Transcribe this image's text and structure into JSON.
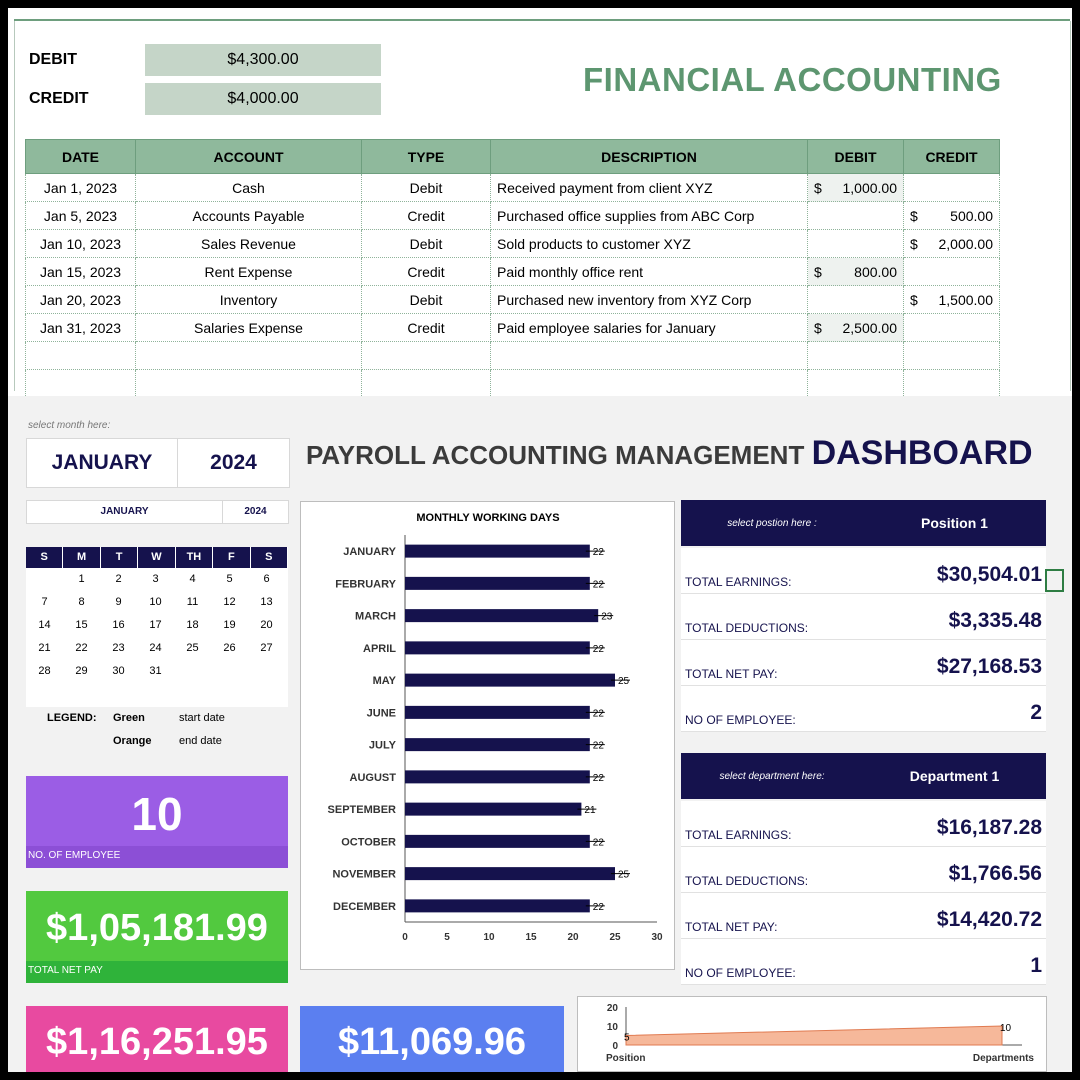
{
  "financial": {
    "debit_label": "DEBIT",
    "debit_value": "$4,300.00",
    "credit_label": "CREDIT",
    "credit_value": "$4,000.00",
    "title": "FINANCIAL ACCOUNTING",
    "columns": [
      "DATE",
      "ACCOUNT",
      "TYPE",
      "DESCRIPTION",
      "DEBIT",
      "CREDIT"
    ],
    "currency_symbol": "$",
    "rows": [
      {
        "date": "Jan 1, 2023",
        "account": "Cash",
        "type": "Debit",
        "description": "Received payment from client XYZ",
        "debit": "1,000.00",
        "credit": ""
      },
      {
        "date": "Jan 5, 2023",
        "account": "Accounts Payable",
        "type": "Credit",
        "description": "Purchased office supplies from ABC Corp",
        "debit": "",
        "credit": "500.00"
      },
      {
        "date": "Jan 10, 2023",
        "account": "Sales Revenue",
        "type": "Debit",
        "description": "Sold products to customer XYZ",
        "debit": "",
        "credit": "2,000.00"
      },
      {
        "date": "Jan 15, 2023",
        "account": "Rent Expense",
        "type": "Credit",
        "description": "Paid monthly office rent",
        "debit": "800.00",
        "credit": ""
      },
      {
        "date": "Jan 20, 2023",
        "account": "Inventory",
        "type": "Debit",
        "description": "Purchased new inventory from XYZ Corp",
        "debit": "",
        "credit": "1,500.00"
      },
      {
        "date": "Jan 31, 2023",
        "account": "Salaries Expense",
        "type": "Credit",
        "description": "Paid employee salaries for January",
        "debit": "2,500.00",
        "credit": ""
      }
    ]
  },
  "payroll": {
    "hint_month": "select month here:",
    "month": "JANUARY",
    "year": "2024",
    "title_main": "PAYROLL ACCOUNTING MANAGEMENT",
    "title_emph": "DASHBOARD",
    "mini_month": "JANUARY",
    "mini_year": "2024",
    "calendar": {
      "days": [
        "S",
        "M",
        "T",
        "W",
        "TH",
        "F",
        "S"
      ],
      "weeks": [
        [
          "",
          "1",
          "2",
          "3",
          "4",
          "5",
          "6"
        ],
        [
          "7",
          "8",
          "9",
          "10",
          "11",
          "12",
          "13"
        ],
        [
          "14",
          "15",
          "16",
          "17",
          "18",
          "19",
          "20"
        ],
        [
          "21",
          "22",
          "23",
          "24",
          "25",
          "26",
          "27"
        ],
        [
          "28",
          "29",
          "30",
          "31",
          "",
          "",
          ""
        ]
      ]
    },
    "legend": {
      "label": "LEGEND:",
      "green": "Green",
      "green_desc": "start date",
      "orange": "Orange",
      "orange_desc": "end date"
    },
    "kpis": {
      "employees_value": "10",
      "employees_label": "NO. OF EMPLOYEE",
      "net_pay_value": "$1,05,181.99",
      "net_pay_label": "TOTAL NET PAY",
      "earnings_value": "$1,16,251.95",
      "deductions_value": "$11,069.96"
    },
    "colors": {
      "navy": "#15124d",
      "purple": "#9b5de5",
      "green": "#4fc93b",
      "pink": "#e84aa0",
      "blue": "#5b7ff0"
    },
    "position_panel": {
      "hint": "select postion here :",
      "selected": "Position 1",
      "rows": [
        {
          "label": "TOTAL EARNINGS:",
          "value": "$30,504.01"
        },
        {
          "label": "TOTAL DEDUCTIONS:",
          "value": "$3,335.48"
        },
        {
          "label": "TOTAL NET PAY:",
          "value": "$27,168.53"
        },
        {
          "label": "NO OF EMPLOYEE:",
          "value": "2"
        }
      ]
    },
    "department_panel": {
      "hint": "select department here:",
      "selected": "Department 1",
      "rows": [
        {
          "label": "TOTAL EARNINGS:",
          "value": "$16,187.28"
        },
        {
          "label": "TOTAL DEDUCTIONS:",
          "value": "$1,766.56"
        },
        {
          "label": "TOTAL NET PAY:",
          "value": "$14,420.72"
        },
        {
          "label": "NO OF EMPLOYEE:",
          "value": "1"
        }
      ]
    }
  },
  "chart_data": [
    {
      "type": "bar",
      "orientation": "horizontal",
      "title": "MONTHLY WORKING DAYS",
      "categories": [
        "JANUARY",
        "FEBRUARY",
        "MARCH",
        "APRIL",
        "MAY",
        "JUNE",
        "JULY",
        "AUGUST",
        "SEPTEMBER",
        "OCTOBER",
        "NOVEMBER",
        "DECEMBER"
      ],
      "values": [
        22,
        22,
        23,
        22,
        25,
        22,
        22,
        22,
        21,
        22,
        25,
        22
      ],
      "xlim": [
        0,
        30
      ],
      "xticks": [
        0,
        5,
        10,
        15,
        20,
        25,
        30
      ],
      "color": "#15124d",
      "data_labels": true
    },
    {
      "type": "area",
      "categories": [
        "Position",
        "Departments"
      ],
      "values": [
        5,
        10
      ],
      "ylim": [
        0,
        20
      ],
      "yticks": [
        0,
        10,
        20
      ],
      "color": "#f6b89a",
      "data_labels": true
    }
  ]
}
